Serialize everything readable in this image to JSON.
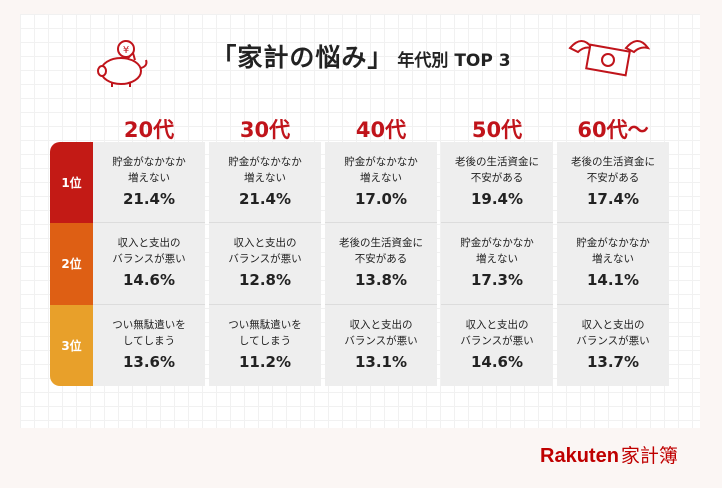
{
  "title": {
    "main": "「家計の悩み」",
    "sub": "年代別 TOP 3"
  },
  "age_groups": [
    "20代",
    "30代",
    "40代",
    "50代",
    "60代〜"
  ],
  "ranks": [
    "1位",
    "2位",
    "3位"
  ],
  "rank_colors": [
    "#c31a15",
    "#de5f14",
    "#e8a02a"
  ],
  "accent_color": "#c0141b",
  "columns": [
    {
      "cells": [
        {
          "label": "貯金がなかなか\n増えない",
          "value": "21.4%"
        },
        {
          "label": "収入と支出の\nバランスが悪い",
          "value": "14.6%"
        },
        {
          "label": "つい無駄遣いを\nしてしまう",
          "value": "13.6%"
        }
      ]
    },
    {
      "cells": [
        {
          "label": "貯金がなかなか\n増えない",
          "value": "21.4%"
        },
        {
          "label": "収入と支出の\nバランスが悪い",
          "value": "12.8%"
        },
        {
          "label": "つい無駄遣いを\nしてしまう",
          "value": "11.2%"
        }
      ]
    },
    {
      "cells": [
        {
          "label": "貯金がなかなか\n増えない",
          "value": "17.0%"
        },
        {
          "label": "老後の生活資金に\n不安がある",
          "value": "13.8%"
        },
        {
          "label": "収入と支出の\nバランスが悪い",
          "value": "13.1%"
        }
      ]
    },
    {
      "cells": [
        {
          "label": "老後の生活資金に\n不安がある",
          "value": "19.4%"
        },
        {
          "label": "貯金がなかなか\n増えない",
          "value": "17.3%"
        },
        {
          "label": "収入と支出の\nバランスが悪い",
          "value": "14.6%"
        }
      ]
    },
    {
      "cells": [
        {
          "label": "老後の生活資金に\n不安がある",
          "value": "17.4%"
        },
        {
          "label": "貯金がなかなか\n増えない",
          "value": "14.1%"
        },
        {
          "label": "収入と支出の\nバランスが悪い",
          "value": "13.7%"
        }
      ]
    }
  ],
  "logo": {
    "brand": "Rakuten",
    "product": "家計簿"
  },
  "icons": {
    "left": "piggy-bank-icon",
    "right": "flying-money-icon"
  }
}
